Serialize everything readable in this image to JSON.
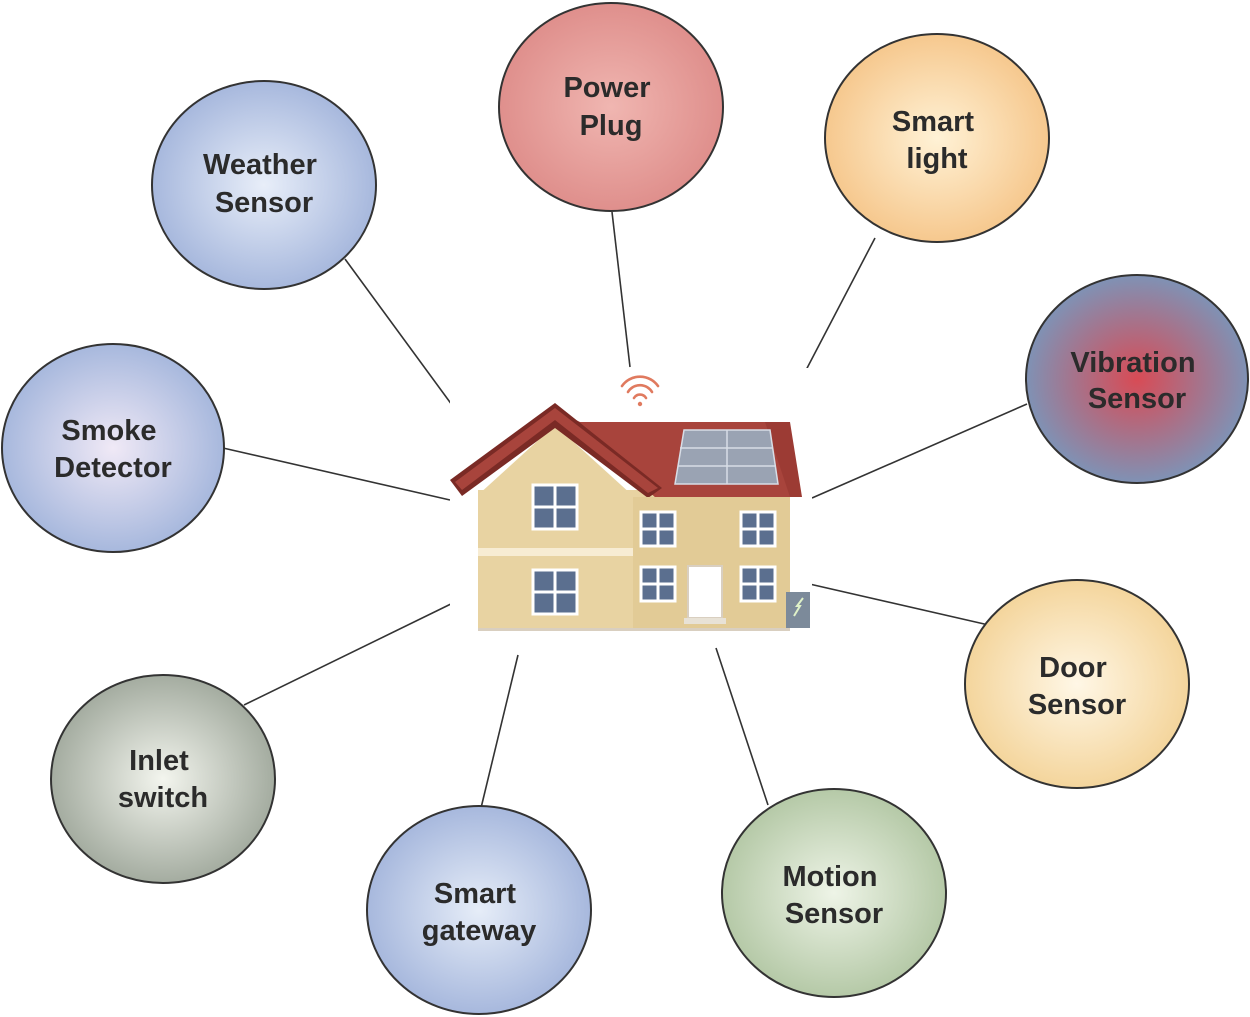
{
  "hub": {
    "icon": "smart-house-icon",
    "wifi_icon": "wifi-icon",
    "solar_icon": "solar-panel-icon",
    "meter_icon": "energy-meter-icon"
  },
  "nodes": [
    {
      "id": "power-plug",
      "lines": [
        "Power",
        "Plug"
      ],
      "colors": [
        "#f0b6b1",
        "#df8f8c"
      ],
      "border": "#333333"
    },
    {
      "id": "smart-light",
      "lines": [
        "Smart",
        "light"
      ],
      "colors": [
        "#fff2d6",
        "#f6c88e"
      ],
      "border": "#333333"
    },
    {
      "id": "vibration-sensor",
      "lines": [
        "Vibration",
        "Sensor"
      ],
      "colors": [
        "#d84b55",
        "#7f92b5"
      ],
      "border": "#333333"
    },
    {
      "id": "door-sensor",
      "lines": [
        "Door",
        "Sensor"
      ],
      "colors": [
        "#fff7e6",
        "#f4d59c"
      ],
      "border": "#333333"
    },
    {
      "id": "motion-sensor",
      "lines": [
        "Motion",
        "Sensor"
      ],
      "colors": [
        "#eef4e7",
        "#b5c9a7"
      ],
      "border": "#333333"
    },
    {
      "id": "smart-gateway",
      "lines": [
        "Smart",
        "gateway"
      ],
      "colors": [
        "#e6edf8",
        "#a7b8dd"
      ],
      "border": "#333333"
    },
    {
      "id": "inlet-switch",
      "lines": [
        "Inlet",
        "switch"
      ],
      "colors": [
        "#f3f5ee",
        "#a4aca0"
      ],
      "border": "#333333"
    },
    {
      "id": "smoke-detector",
      "lines": [
        "Smoke",
        "Detector"
      ],
      "colors": [
        "#f0e9f6",
        "#a7b8dd"
      ],
      "border": "#333333"
    },
    {
      "id": "weather-sensor",
      "lines": [
        "Weather",
        "Sensor"
      ],
      "colors": [
        "#e8eef9",
        "#a7b8dd"
      ],
      "border": "#333333"
    }
  ],
  "house_colors": {
    "wall": "#e8d3a2",
    "roof": "#9c3b34",
    "roof_edge": "#7a2a25",
    "window": "#5b6f8f",
    "frame": "#ffffff",
    "panel": "#9aa3b3"
  }
}
